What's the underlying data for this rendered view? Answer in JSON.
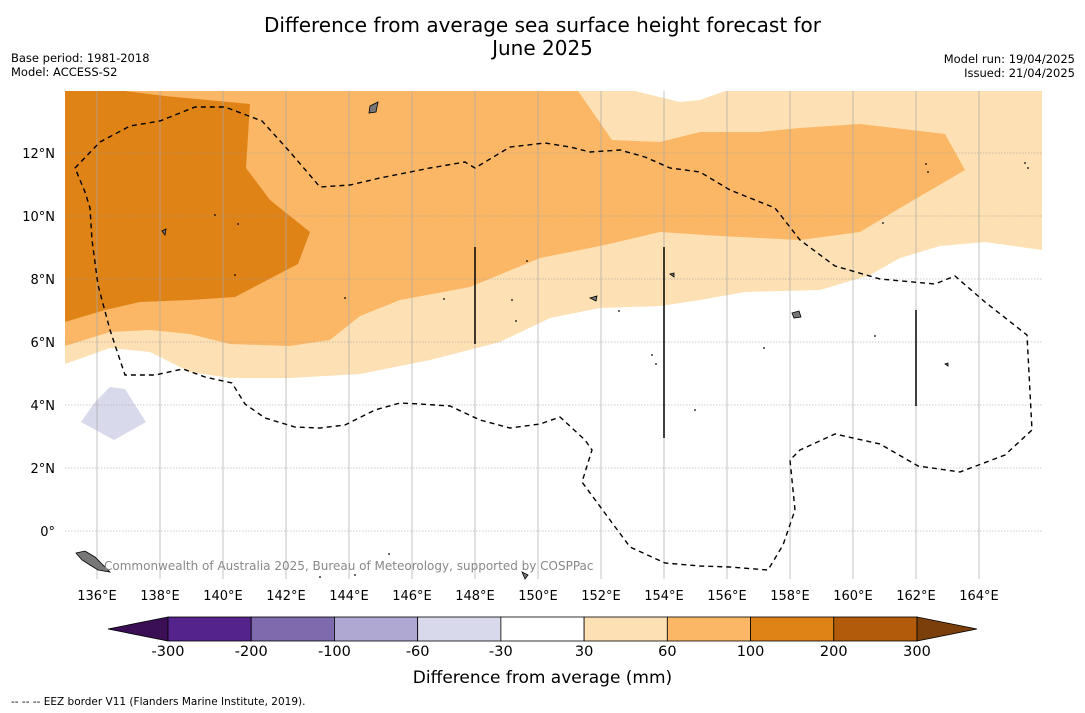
{
  "title_line1": "Difference from average sea surface height forecast for",
  "title_line2": "June 2025",
  "base_period": "Base period: 1981-2018",
  "model": "Model: ACCESS-S2",
  "model_run": "Model run: 19/04/2025",
  "issued": "Issued: 21/04/2025",
  "copyright": "Commonwealth of Australia 2025, Bureau of Meteorology, supported by COSPPac",
  "footnote": "--  --  -- EEZ border V11 (Flanders Marine Institute, 2019).",
  "lat_labels": [
    "12°N",
    "10°N",
    "8°N",
    "6°N",
    "4°N",
    "2°N",
    "0°"
  ],
  "lon_labels": [
    "136°E",
    "138°E",
    "140°E",
    "142°E",
    "144°E",
    "146°E",
    "148°E",
    "150°E",
    "152°E",
    "154°E",
    "156°E",
    "158°E",
    "160°E",
    "162°E",
    "164°E"
  ],
  "colorbar": {
    "label": "Difference from average (mm)",
    "ticks": [
      "-300",
      "-200",
      "-100",
      "-60",
      "-30",
      "30",
      "60",
      "100",
      "200",
      "300"
    ],
    "colors": [
      "#3b0f56",
      "#55238c",
      "#7e6bae",
      "#afa8d2",
      "#d9d9ec",
      "#ffffff",
      "#fde0b3",
      "#fbb765",
      "#e08317",
      "#b25c0b",
      "#7a3f0b"
    ]
  }
}
